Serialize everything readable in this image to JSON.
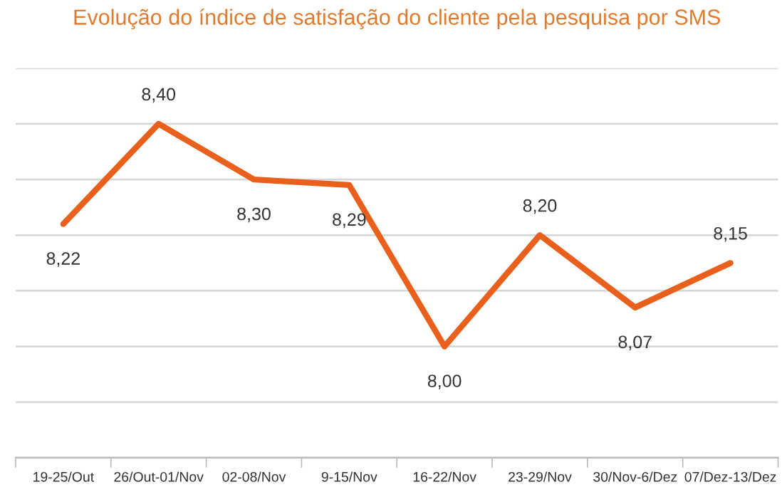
{
  "chart_data": {
    "type": "line",
    "title": "Evolução do índice de satisfação do cliente pela pesquisa por SMS",
    "categories": [
      "19-25/Out",
      "26/Out-01/Nov",
      "02-08/Nov",
      "9-15/Nov",
      "16-22/Nov",
      "23-29/Nov",
      "30/Nov-6/Dez",
      "07/Dez-13/Dez"
    ],
    "series": [
      {
        "color": "#e8601c",
        "values": [
          8.22,
          8.4,
          8.3,
          8.29,
          8.0,
          8.2,
          8.07,
          8.15
        ],
        "value_labels": [
          "8,22",
          "8,40",
          "8,30",
          "8,29",
          "8,00",
          "8,20",
          "8,07",
          "8,15"
        ]
      }
    ],
    "ylim": [
      7.8,
      8.5
    ],
    "yticks": [
      {
        "value": 7.8,
        "label": null
      },
      {
        "value": 7.9,
        "label": null
      },
      {
        "value": 8.0,
        "label": null
      },
      {
        "value": 8.1,
        "label": null
      },
      {
        "value": 8.2,
        "label": null
      },
      {
        "value": 8.3,
        "label": null
      },
      {
        "value": 8.4,
        "label": null
      },
      {
        "value": 8.5,
        "label": null
      }
    ],
    "grid": "y",
    "marker": "none",
    "line_style": "solid",
    "tick_labels": "x"
  }
}
